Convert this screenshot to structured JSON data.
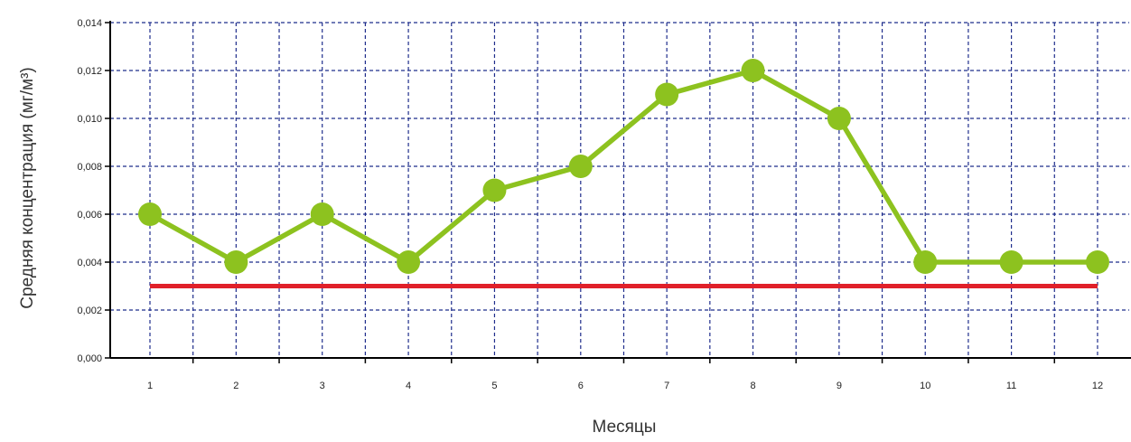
{
  "chart_data": {
    "type": "line",
    "xlabel": "Месяцы",
    "ylabel": "Средняя концентрация (мг/м³)",
    "categories": [
      "1",
      "2",
      "3",
      "4",
      "5",
      "6",
      "7",
      "8",
      "9",
      "10",
      "11",
      "12"
    ],
    "y_ticks": [
      "0,000",
      "0,002",
      "0,004",
      "0,006",
      "0,008",
      "0,010",
      "0,012",
      "0,014"
    ],
    "ylim": [
      0,
      0.014
    ],
    "grid": true,
    "series": [
      {
        "values": [
          0.006,
          0.004,
          0.006,
          0.004,
          0.007,
          0.008,
          0.011,
          0.012,
          0.01,
          0.004,
          0.004,
          0.004
        ],
        "color": "#8dc21f",
        "markers": true
      },
      {
        "values": [
          0.003,
          0.003,
          0.003,
          0.003,
          0.003,
          0.003,
          0.003,
          0.003,
          0.003,
          0.003,
          0.003,
          0.003
        ],
        "color": "#e0202a",
        "markers": false
      }
    ],
    "grid_color": "#1f2d8c"
  }
}
